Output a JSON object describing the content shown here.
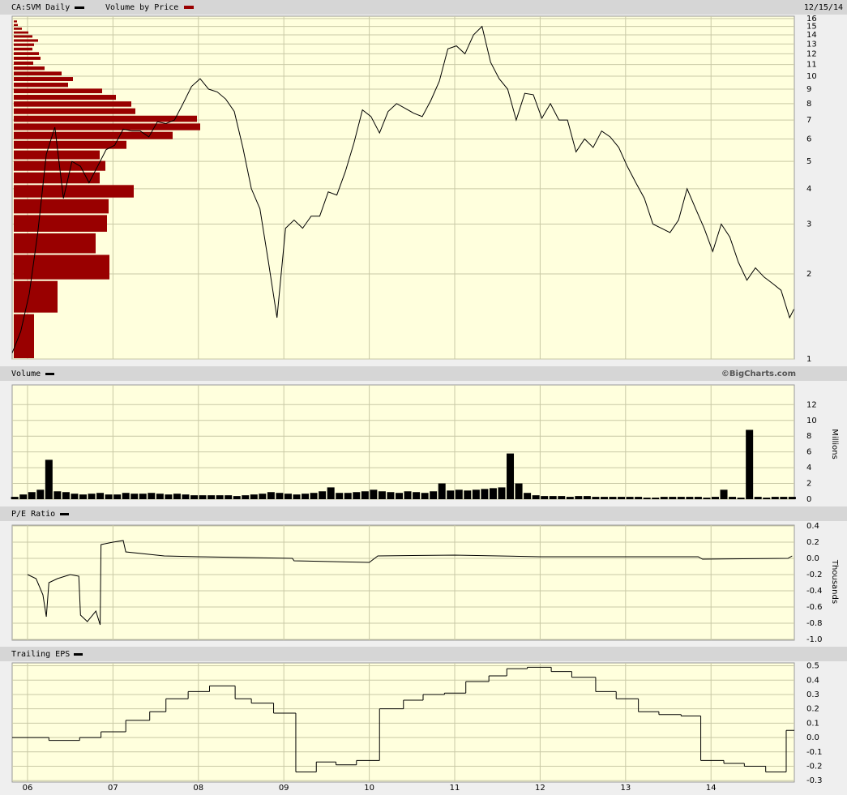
{
  "chart_data": [
    {
      "type": "line",
      "date": "12/15/14",
      "log_scale": true,
      "grid": true,
      "xlim": [
        5.82,
        14.975
      ],
      "xticks": [
        6,
        7,
        8,
        9,
        10,
        11,
        12,
        13,
        14
      ],
      "ylim": [
        1,
        16.3
      ],
      "yticks": [
        1,
        2,
        3,
        4,
        5,
        6,
        7,
        8,
        9,
        10,
        11,
        12,
        13,
        14,
        15,
        16
      ],
      "series": [
        {
          "name": "CA:SVM Daily",
          "color": "#000000",
          "x": [
            5.82,
            5.92,
            6.02,
            6.12,
            6.22,
            6.32,
            6.42,
            6.52,
            6.62,
            6.72,
            6.82,
            6.92,
            7.02,
            7.12,
            7.22,
            7.32,
            7.42,
            7.52,
            7.62,
            7.72,
            7.82,
            7.92,
            8.02,
            8.12,
            8.22,
            8.32,
            8.42,
            8.52,
            8.62,
            8.72,
            8.82,
            8.92,
            9.02,
            9.12,
            9.22,
            9.32,
            9.42,
            9.52,
            9.62,
            9.72,
            9.82,
            9.92,
            10.02,
            10.12,
            10.22,
            10.32,
            10.42,
            10.52,
            10.62,
            10.72,
            10.82,
            10.92,
            11.02,
            11.12,
            11.22,
            11.32,
            11.42,
            11.52,
            11.62,
            11.72,
            11.82,
            11.92,
            12.02,
            12.12,
            12.22,
            12.32,
            12.42,
            12.52,
            12.62,
            12.72,
            12.82,
            12.92,
            13.02,
            13.12,
            13.22,
            13.32,
            13.42,
            13.52,
            13.62,
            13.72,
            13.82,
            13.92,
            14.02,
            14.12,
            14.22,
            14.32,
            14.42,
            14.52,
            14.62,
            14.72,
            14.82,
            14.92,
            14.97
          ],
          "values": [
            1.05,
            1.25,
            1.7,
            2.8,
            5.3,
            6.6,
            3.7,
            5.0,
            4.8,
            4.2,
            4.8,
            5.5,
            5.7,
            6.5,
            6.4,
            6.4,
            6.1,
            6.9,
            6.8,
            7.0,
            8.0,
            9.2,
            9.8,
            9.0,
            8.8,
            8.3,
            7.5,
            5.6,
            4.0,
            3.4,
            2.2,
            1.4,
            2.9,
            3.1,
            2.9,
            3.2,
            3.2,
            3.9,
            3.8,
            4.6,
            5.8,
            7.6,
            7.2,
            6.3,
            7.5,
            8.0,
            7.7,
            7.4,
            7.2,
            8.2,
            9.6,
            12.5,
            12.8,
            12.0,
            14.0,
            15.0,
            11.2,
            9.8,
            9.0,
            7.0,
            8.7,
            8.6,
            7.1,
            8.0,
            7.0,
            7.0,
            5.4,
            6.0,
            5.6,
            6.4,
            6.1,
            5.6,
            4.8,
            4.2,
            3.7,
            3.0,
            2.9,
            2.8,
            3.1,
            4.0,
            3.4,
            2.9,
            2.4,
            3.0,
            2.7,
            2.2,
            1.9,
            2.1,
            1.95,
            1.85,
            1.75,
            1.4,
            1.5
          ]
        }
      ],
      "volume_by_price": {
        "name": "Volume by Price",
        "color": "#990000",
        "bins": [
          1,
          1.45,
          1.9,
          2.35,
          2.8,
          3.25,
          3.7,
          4.15,
          4.6,
          5.05,
          5.5,
          5.95,
          6.4,
          6.85,
          7.3,
          7.75,
          8.2,
          8.65,
          9.1,
          9.55,
          10,
          10.45,
          10.9,
          11.35,
          11.8,
          12.25,
          12.7,
          13.15,
          13.6,
          14.05,
          14.5,
          14.95,
          15.4,
          15.85
        ],
        "values": [
          25,
          54,
          118,
          101,
          115,
          117,
          148,
          106,
          113,
          106,
          139,
          196,
          230,
          226,
          150,
          145,
          126,
          109,
          67,
          73,
          59,
          38,
          24,
          33,
          31,
          23,
          25,
          30,
          23,
          18,
          10,
          5,
          4
        ]
      }
    },
    {
      "type": "bar",
      "title": "Volume",
      "copyright": "©BigCharts.com",
      "ylabel": "Millions",
      "color": "#000000",
      "grid": true,
      "xlim": [
        5.82,
        14.975
      ],
      "xticks": [
        6,
        7,
        8,
        9,
        10,
        11,
        12,
        13,
        14
      ],
      "ylim": [
        0,
        14.5
      ],
      "yticks": [
        0,
        2,
        4,
        6,
        8,
        10,
        12
      ],
      "x": [
        5.85,
        5.95,
        6.05,
        6.15,
        6.25,
        6.35,
        6.45,
        6.55,
        6.65,
        6.75,
        6.85,
        6.95,
        7.05,
        7.15,
        7.25,
        7.35,
        7.45,
        7.55,
        7.65,
        7.75,
        7.85,
        7.95,
        8.05,
        8.15,
        8.25,
        8.35,
        8.45,
        8.55,
        8.65,
        8.75,
        8.85,
        8.95,
        9.05,
        9.15,
        9.25,
        9.35,
        9.45,
        9.55,
        9.65,
        9.75,
        9.85,
        9.95,
        10.05,
        10.15,
        10.25,
        10.35,
        10.45,
        10.55,
        10.65,
        10.75,
        10.85,
        10.95,
        11.05,
        11.15,
        11.25,
        11.35,
        11.45,
        11.55,
        11.65,
        11.75,
        11.85,
        11.95,
        12.05,
        12.15,
        12.25,
        12.35,
        12.45,
        12.55,
        12.65,
        12.75,
        12.85,
        12.95,
        13.05,
        13.15,
        13.25,
        13.35,
        13.45,
        13.55,
        13.65,
        13.75,
        13.85,
        13.95,
        14.05,
        14.15,
        14.25,
        14.35,
        14.45,
        14.55,
        14.65,
        14.75,
        14.85,
        14.95
      ],
      "values": [
        0.3,
        0.6,
        0.9,
        1.2,
        5.0,
        1.0,
        0.9,
        0.7,
        0.6,
        0.7,
        0.8,
        0.6,
        0.6,
        0.8,
        0.7,
        0.7,
        0.8,
        0.7,
        0.6,
        0.7,
        0.6,
        0.5,
        0.5,
        0.5,
        0.5,
        0.5,
        0.4,
        0.5,
        0.6,
        0.7,
        0.9,
        0.8,
        0.7,
        0.6,
        0.7,
        0.8,
        1.0,
        1.5,
        0.8,
        0.8,
        0.9,
        1.0,
        1.2,
        1.0,
        0.9,
        0.8,
        1.0,
        0.9,
        0.8,
        1.0,
        2.0,
        1.1,
        1.2,
        1.1,
        1.2,
        1.3,
        1.4,
        1.5,
        5.8,
        2.0,
        0.8,
        0.5,
        0.4,
        0.4,
        0.4,
        0.3,
        0.4,
        0.4,
        0.3,
        0.3,
        0.3,
        0.3,
        0.3,
        0.3,
        0.2,
        0.2,
        0.3,
        0.3,
        0.3,
        0.3,
        0.3,
        0.2,
        0.3,
        1.2,
        0.3,
        0.2,
        8.8,
        0.3,
        0.2,
        0.3,
        0.3,
        0.3
      ]
    },
    {
      "type": "line",
      "title": "P/E Ratio",
      "ylabel": "Thousands",
      "color": "#000000",
      "grid": true,
      "xlim": [
        5.82,
        14.975
      ],
      "xticks": [
        6,
        7,
        8,
        9,
        10,
        11,
        12,
        13,
        14
      ],
      "ylim": [
        -1.01,
        0.41
      ],
      "yticks": [
        {
          "value": -1,
          "label": "-1.0"
        },
        -0.8,
        -0.6,
        -0.4,
        -0.2,
        {
          "value": 0,
          "label": "0.0"
        },
        0.2,
        0.4
      ],
      "x": [
        6.0,
        6.1,
        6.18,
        6.22,
        6.25,
        6.35,
        6.5,
        6.6,
        6.62,
        6.7,
        6.8,
        6.85,
        6.86,
        7.0,
        7.12,
        7.15,
        7.6,
        8.0,
        9.1,
        9.12,
        10.0,
        10.1,
        11.0,
        12.0,
        13.0,
        13.85,
        13.9,
        14.9,
        14.95
      ],
      "values": [
        -0.2,
        -0.25,
        -0.45,
        -0.72,
        -0.3,
        -0.25,
        -0.2,
        -0.22,
        -0.7,
        -0.78,
        -0.65,
        -0.82,
        0.17,
        0.2,
        0.22,
        0.08,
        0.03,
        0.02,
        0.0,
        -0.03,
        -0.05,
        0.03,
        0.04,
        0.02,
        0.02,
        0.02,
        -0.01,
        0.0,
        0.03
      ]
    },
    {
      "type": "line",
      "title": "Trailing EPS",
      "step": "post",
      "color": "#000000",
      "grid": true,
      "xlim": [
        5.82,
        14.975
      ],
      "xticks": [
        {
          "value": 6,
          "label": "06"
        },
        {
          "value": 7,
          "label": "07"
        },
        {
          "value": 8,
          "label": "08"
        },
        {
          "value": 9,
          "label": "09"
        },
        {
          "value": 10,
          "label": "10"
        },
        {
          "value": 11,
          "label": "11"
        },
        {
          "value": 12,
          "label": "12"
        },
        {
          "value": 13,
          "label": "13"
        },
        {
          "value": 14,
          "label": "14"
        }
      ],
      "ylim": [
        -0.31,
        0.52
      ],
      "yticks": [
        -0.3,
        -0.2,
        -0.1,
        {
          "value": 0,
          "label": "0.0"
        },
        0.1,
        0.2,
        0.3,
        0.4,
        0.5
      ],
      "x": [
        5.82,
        6.25,
        6.61,
        6.86,
        7.15,
        7.43,
        7.62,
        7.88,
        8.13,
        8.43,
        8.62,
        8.88,
        9.14,
        9.38,
        9.61,
        9.85,
        10.12,
        10.4,
        10.63,
        10.88,
        11.13,
        11.4,
        11.61,
        11.85,
        12.13,
        12.37,
        12.65,
        12.89,
        13.15,
        13.39,
        13.65,
        13.88,
        14.15,
        14.39,
        14.64,
        14.88
      ],
      "values": [
        0.0,
        -0.02,
        0.0,
        0.04,
        0.12,
        0.18,
        0.27,
        0.32,
        0.36,
        0.27,
        0.24,
        0.17,
        -0.24,
        -0.17,
        -0.19,
        -0.16,
        0.2,
        0.26,
        0.3,
        0.31,
        0.39,
        0.43,
        0.48,
        0.49,
        0.46,
        0.42,
        0.32,
        0.27,
        0.18,
        0.16,
        0.15,
        -0.16,
        -0.18,
        -0.2,
        -0.24,
        0.05
      ]
    }
  ]
}
